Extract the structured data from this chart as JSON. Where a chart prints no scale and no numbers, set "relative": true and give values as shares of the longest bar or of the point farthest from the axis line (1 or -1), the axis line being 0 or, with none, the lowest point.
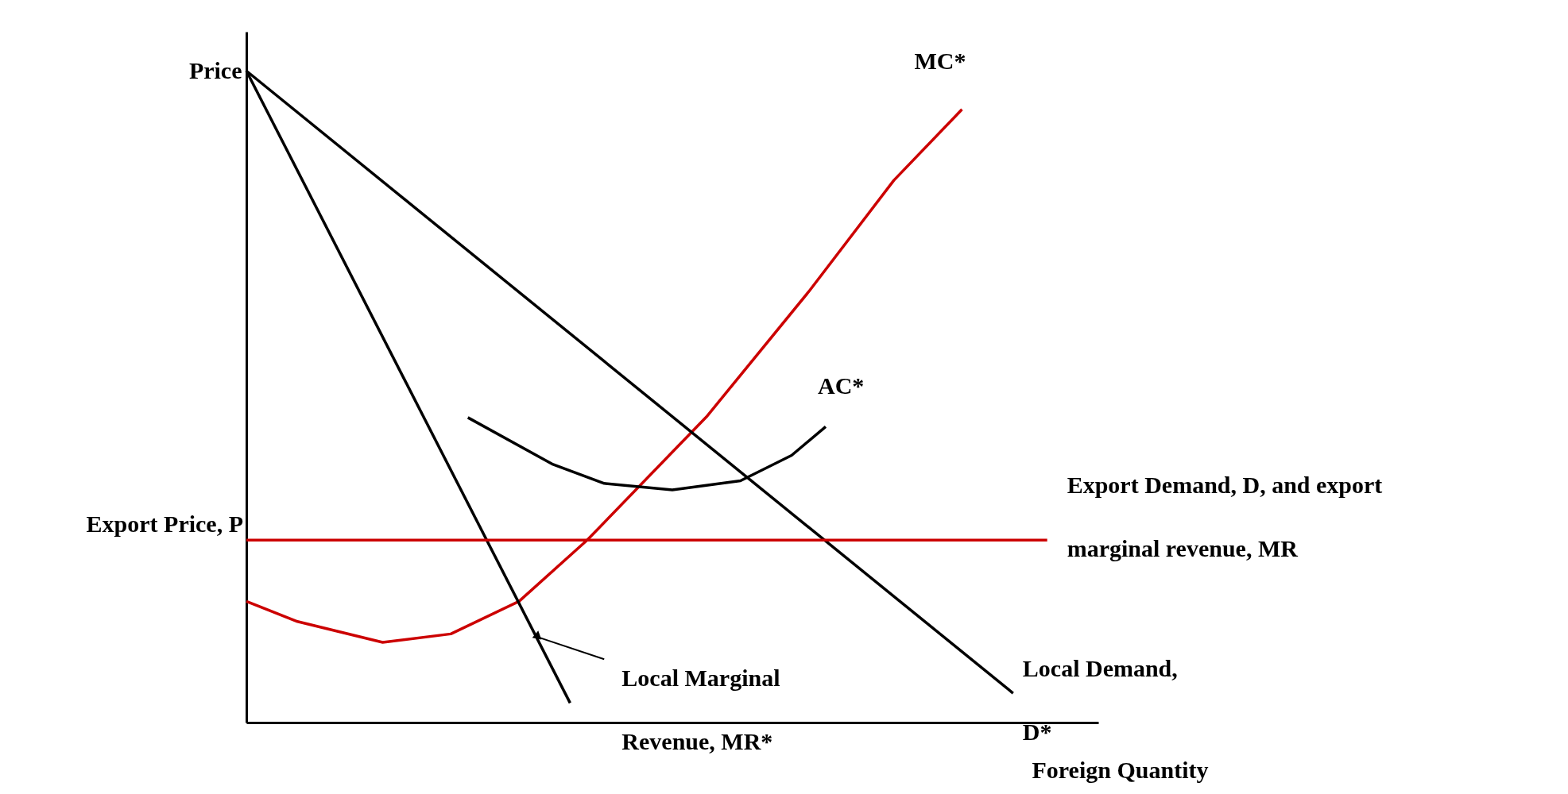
{
  "chart_data": {
    "type": "line",
    "relative": true,
    "xlabel": "Foreign Quantity",
    "ylabel": "Price",
    "marker": "none",
    "line_style": "solid",
    "categories": [
      null,
      null,
      null,
      null,
      null,
      null,
      null,
      null,
      null,
      null,
      null,
      null,
      null,
      null,
      null,
      null,
      null,
      null,
      null,
      null,
      null,
      null,
      null,
      null,
      null,
      null,
      null,
      null,
      null,
      null,
      null,
      null,
      null,
      null,
      null,
      null,
      null,
      null,
      null,
      null,
      null,
      null,
      null,
      null,
      null,
      null,
      null,
      null,
      null,
      null,
      null
    ],
    "series": [
      {
        "name": "MC*",
        "color": "#cc0000",
        "values": [
          0.186,
          null,
          null,
          0.155,
          null,
          null,
          null,
          null,
          0.123,
          null,
          null,
          null,
          0.136,
          null,
          null,
          null,
          0.186,
          null,
          null,
          null,
          0.28,
          null,
          null,
          null,
          null,
          null,
          null,
          0.469,
          null,
          null,
          null,
          null,
          null,
          0.661,
          null,
          null,
          null,
          null,
          0.832,
          null,
          null,
          null,
          0.941,
          null,
          null,
          null,
          null,
          null,
          null,
          null,
          null
        ]
      },
      {
        "name": "AC*",
        "color": "#000000",
        "values": [
          null,
          null,
          null,
          null,
          null,
          null,
          null,
          null,
          null,
          null,
          null,
          null,
          null,
          0.468,
          null,
          null,
          null,
          null,
          0.396,
          null,
          null,
          0.367,
          null,
          null,
          null,
          0.357,
          null,
          null,
          null,
          0.371,
          null,
          null,
          0.41,
          null,
          0.454,
          null,
          null,
          null,
          null,
          null,
          null,
          null,
          null,
          null,
          null,
          null,
          null,
          null,
          null,
          null,
          null
        ]
      },
      {
        "name": "Local Demand, D*",
        "color": "#000000",
        "values": [
          1,
          null,
          null,
          null,
          null,
          null,
          null,
          null,
          null,
          null,
          null,
          null,
          null,
          null,
          null,
          null,
          null,
          null,
          null,
          null,
          null,
          null,
          null,
          null,
          null,
          null,
          null,
          null,
          null,
          null,
          null,
          null,
          null,
          null,
          null,
          null,
          null,
          null,
          null,
          null,
          null,
          null,
          null,
          null,
          null,
          0.045,
          null,
          null,
          null,
          null,
          null
        ]
      },
      {
        "name": "Local Marginal Revenue, MR*",
        "color": "#000000",
        "values": [
          1,
          null,
          null,
          null,
          null,
          null,
          null,
          null,
          null,
          null,
          null,
          null,
          null,
          null,
          null,
          null,
          null,
          null,
          null,
          0.03,
          null,
          null,
          null,
          null,
          null,
          null,
          null,
          null,
          null,
          null,
          null,
          null,
          null,
          null,
          null,
          null,
          null,
          null,
          null,
          null,
          null,
          null,
          null,
          null,
          null,
          null,
          null,
          null,
          null,
          null,
          null
        ]
      },
      {
        "name": "Export Demand, D, and export marginal revenue, MR",
        "color": "#cc0000",
        "values": [
          0.28,
          null,
          null,
          null,
          null,
          null,
          null,
          null,
          null,
          null,
          null,
          null,
          null,
          null,
          null,
          null,
          null,
          null,
          null,
          null,
          null,
          null,
          null,
          null,
          null,
          null,
          null,
          null,
          null,
          null,
          null,
          null,
          null,
          null,
          null,
          null,
          null,
          null,
          null,
          null,
          null,
          null,
          null,
          null,
          null,
          null,
          null,
          0.28,
          null,
          null,
          null
        ]
      }
    ],
    "annotations": [
      "Export Price, P"
    ]
  }
}
